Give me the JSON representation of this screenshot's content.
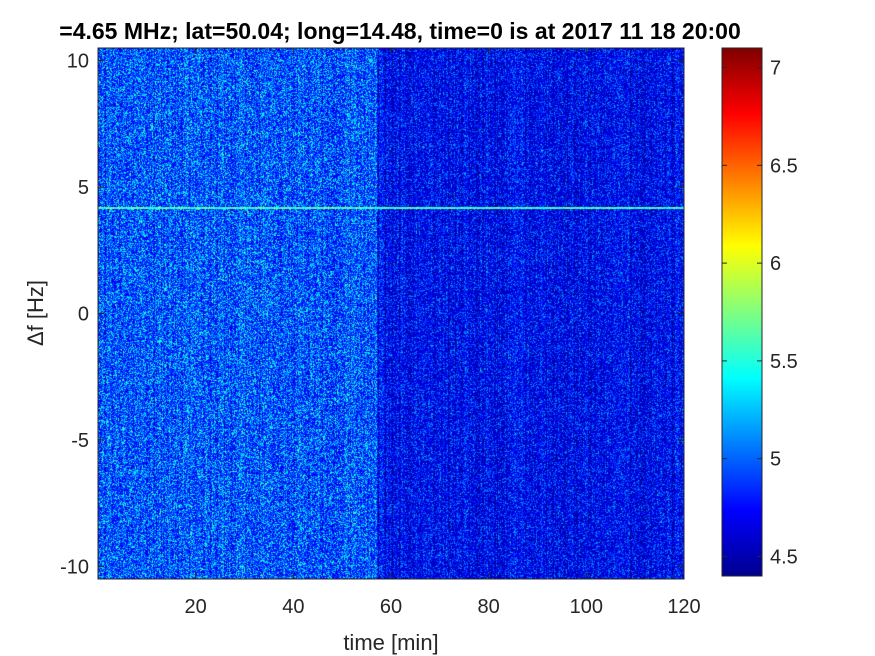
{
  "chart_data": {
    "type": "heatmap",
    "title": "=4.65 MHz;  lat=50.04; long=14.48, time=0 is at 2017 11 18 20:00",
    "xlabel": "time [min]",
    "ylabel": "Δf [Hz]",
    "xlim": [
      0,
      120
    ],
    "ylim": [
      -10.5,
      10.5
    ],
    "x_ticks": [
      20,
      40,
      60,
      80,
      100,
      120
    ],
    "y_ticks": [
      10,
      5,
      0,
      -5,
      -10
    ],
    "colorbar": {
      "colormap": "jet",
      "range": [
        4.4,
        7.1
      ],
      "ticks": [
        4.5,
        5,
        5.5,
        6,
        6.5,
        7
      ]
    },
    "regions": [
      {
        "time_range": [
          0,
          57
        ],
        "level": "higher background (approx. 4.9 - 5.2)"
      },
      {
        "time_range": [
          57,
          120
        ],
        "level": "lower background (approx. 4.6 - 4.8)"
      }
    ],
    "features": [
      {
        "type": "horizontal line",
        "delta_f_hz": 4.2,
        "time_range": [
          0,
          120
        ],
        "level": "approx. 5.6"
      }
    ]
  }
}
